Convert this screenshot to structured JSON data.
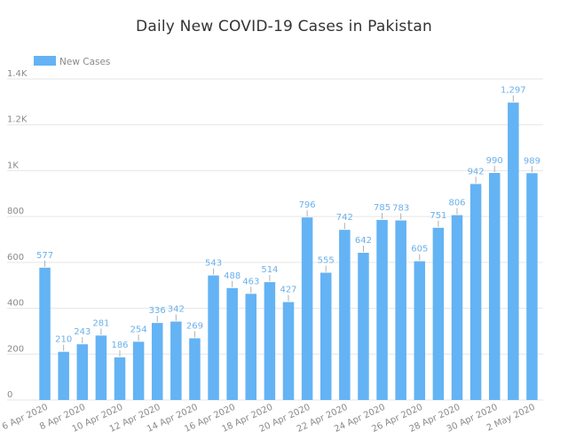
{
  "chart_data": {
    "type": "bar",
    "title": "Daily New COVID-19 Cases in Pakistan",
    "xlabel": "",
    "ylabel": "",
    "ylim": [
      0,
      1400
    ],
    "yticks": [
      0,
      200,
      400,
      600,
      800,
      1000,
      1200,
      1400
    ],
    "ytick_labels": [
      "0",
      "200",
      "400",
      "600",
      "800",
      "1K",
      "1.2K",
      "1.4K"
    ],
    "x_tick_labels": [
      "6 Apr 2020",
      "8 Apr 2020",
      "10 Apr 2020",
      "12 Apr 2020",
      "14 Apr 2020",
      "16 Apr 2020",
      "18 Apr 2020",
      "20 Apr 2020",
      "22 Apr 2020",
      "24 Apr 2020",
      "26 Apr 2020",
      "28 Apr 2020",
      "30 Apr 2020",
      "2 May 2020"
    ],
    "x_tick_every": 2,
    "grid": true,
    "legend_position": "top-left",
    "bar_color": "#64b3f4",
    "series": [
      {
        "name": "New Cases",
        "values": [
          577,
          210,
          243,
          281,
          186,
          254,
          336,
          342,
          269,
          543,
          488,
          463,
          514,
          427,
          796,
          555,
          742,
          642,
          785,
          783,
          605,
          751,
          806,
          942,
          990,
          1297,
          989
        ],
        "labels": [
          "577",
          "210",
          "243",
          "281",
          "186",
          "254",
          "336",
          "342",
          "269",
          "543",
          "488",
          "463",
          "514",
          "427",
          "796",
          "555",
          "742",
          "642",
          "785",
          "783",
          "605",
          "751",
          "806",
          "942",
          "990",
          "1,297",
          "989"
        ]
      }
    ]
  }
}
